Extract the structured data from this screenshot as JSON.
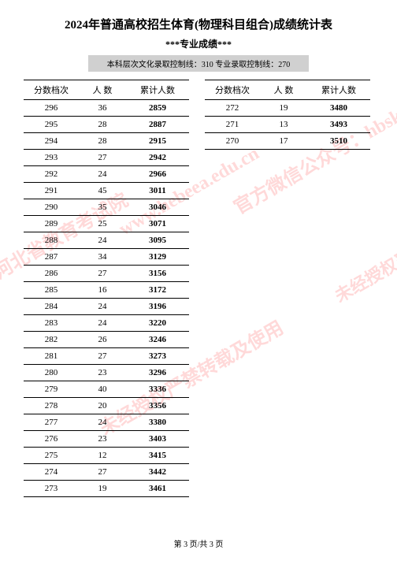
{
  "title": "2024年普通高校招生体育(物理科目组合)成绩统计表",
  "subtitle": "***专业成绩***",
  "control_line": "本科层次文化录取控制线：310 专业录取控制线：270",
  "headers": {
    "col1": "分数档次",
    "col2": "人  数",
    "col3": "累计人数"
  },
  "left_rows": [
    {
      "score": "296",
      "count": "36",
      "cum": "2859"
    },
    {
      "score": "295",
      "count": "28",
      "cum": "2887"
    },
    {
      "score": "294",
      "count": "28",
      "cum": "2915"
    },
    {
      "score": "293",
      "count": "27",
      "cum": "2942"
    },
    {
      "score": "292",
      "count": "24",
      "cum": "2966"
    },
    {
      "score": "291",
      "count": "45",
      "cum": "3011"
    },
    {
      "score": "290",
      "count": "35",
      "cum": "3046"
    },
    {
      "score": "289",
      "count": "25",
      "cum": "3071"
    },
    {
      "score": "288",
      "count": "24",
      "cum": "3095"
    },
    {
      "score": "287",
      "count": "34",
      "cum": "3129"
    },
    {
      "score": "286",
      "count": "27",
      "cum": "3156"
    },
    {
      "score": "285",
      "count": "16",
      "cum": "3172"
    },
    {
      "score": "284",
      "count": "24",
      "cum": "3196"
    },
    {
      "score": "283",
      "count": "24",
      "cum": "3220"
    },
    {
      "score": "282",
      "count": "26",
      "cum": "3246"
    },
    {
      "score": "281",
      "count": "27",
      "cum": "3273"
    },
    {
      "score": "280",
      "count": "23",
      "cum": "3296"
    },
    {
      "score": "279",
      "count": "40",
      "cum": "3336"
    },
    {
      "score": "278",
      "count": "20",
      "cum": "3356"
    },
    {
      "score": "277",
      "count": "24",
      "cum": "3380"
    },
    {
      "score": "276",
      "count": "23",
      "cum": "3403"
    },
    {
      "score": "275",
      "count": "12",
      "cum": "3415"
    },
    {
      "score": "274",
      "count": "27",
      "cum": "3442"
    },
    {
      "score": "273",
      "count": "19",
      "cum": "3461"
    }
  ],
  "right_rows": [
    {
      "score": "272",
      "count": "19",
      "cum": "3480"
    },
    {
      "score": "271",
      "count": "13",
      "cum": "3493"
    },
    {
      "score": "270",
      "count": "17",
      "cum": "3510"
    }
  ],
  "footer": "第 3 页/共 3 页",
  "watermarks": {
    "wm1": "河北省教育考试院",
    "wm2": "www.hebeea.edu.cn",
    "wm3": "官方微信公众号：hbsksy",
    "wm4": "未经授权严禁转载及使用"
  }
}
